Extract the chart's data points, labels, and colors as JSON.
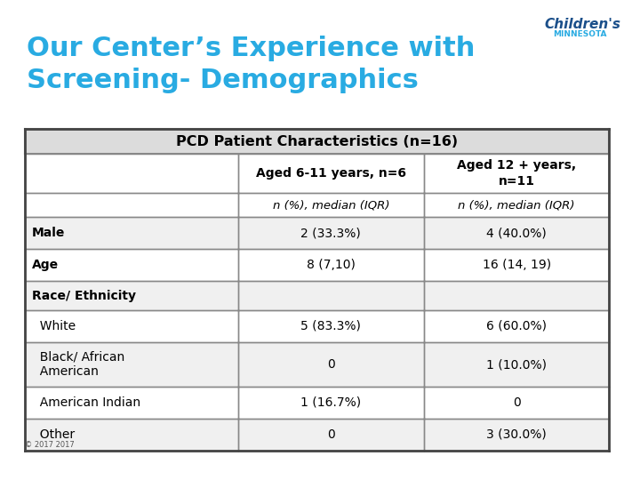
{
  "title_line1": "Our Center’s Experience with",
  "title_line2": "Screening- Demographics",
  "title_color": "#29ABE2",
  "title_fontsize": 22,
  "background_color": "#FFFFFF",
  "table_header": "PCD Patient Characteristics (n=16)",
  "border_color": "#888888",
  "header_bg": "#E0E0E0",
  "copyright": "© 2017"
}
